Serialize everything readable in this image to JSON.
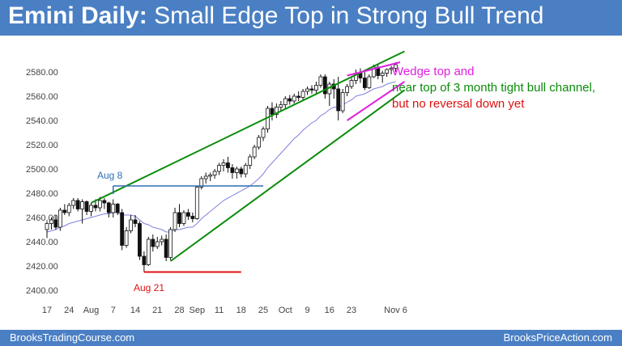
{
  "title_bold": "Emini Daily:",
  "title_rest": "Small Edge Top in Strong Bull Trend",
  "footer_left": "BrooksTradingCourse.com",
  "footer_right": "BrooksPriceAction.com",
  "colors": {
    "header": "#4a7fc4",
    "channel": "#0a8c0a",
    "wedge": "#e020e0",
    "support": "#e01010",
    "aug8_line": "#2f6fb0",
    "ema": "#8080e0",
    "candle": "#111111"
  },
  "annotations": {
    "aug8": "Aug 8",
    "aug21": "Aug 21",
    "note1": "Wedge top and",
    "note2": "near top of 3 month tight bull channel,",
    "note3": "but no reversal down yet"
  },
  "chart_data": {
    "type": "candlestick",
    "title": "Emini Daily: Small Edge Top in Strong Bull Trend",
    "ylim": [
      2395,
      2600
    ],
    "yticks": [
      2400,
      2420,
      2440,
      2460,
      2480,
      2500,
      2520,
      2540,
      2560,
      2580
    ],
    "ytick_labels": [
      "2400.00",
      "2420.00",
      "2440.00",
      "2460.00",
      "2480.00",
      "2500.00",
      "2520.00",
      "2540.00",
      "2560.00",
      "2580.00"
    ],
    "xtick_labels": [
      "17",
      "24",
      "Aug",
      "7",
      "14",
      "21",
      "28",
      "Sep",
      "11",
      "18",
      "25",
      "Oct",
      "9",
      "16",
      "23",
      "Nov 6"
    ],
    "xtick_bar_index": [
      0,
      5,
      10,
      15,
      20,
      25,
      30,
      34,
      39,
      44,
      49,
      54,
      59,
      64,
      69,
      79
    ],
    "ohlc": [
      [
        2450,
        2457,
        2443,
        2455
      ],
      [
        2455,
        2460,
        2450,
        2458
      ],
      [
        2458,
        2462,
        2450,
        2452
      ],
      [
        2452,
        2468,
        2449,
        2466
      ],
      [
        2466,
        2471,
        2462,
        2464
      ],
      [
        2464,
        2472,
        2461,
        2470
      ],
      [
        2470,
        2476,
        2467,
        2474
      ],
      [
        2474,
        2476,
        2465,
        2467
      ],
      [
        2467,
        2475,
        2455,
        2473
      ],
      [
        2473,
        2474,
        2462,
        2465
      ],
      [
        2465,
        2472,
        2461,
        2470
      ],
      [
        2470,
        2475,
        2465,
        2468
      ],
      [
        2468,
        2477,
        2465,
        2474
      ],
      [
        2474,
        2476,
        2467,
        2472
      ],
      [
        2472,
        2473,
        2460,
        2464
      ],
      [
        2464,
        2475,
        2460,
        2471
      ],
      [
        2471,
        2472,
        2462,
        2464
      ],
      [
        2464,
        2467,
        2433,
        2437
      ],
      [
        2437,
        2452,
        2435,
        2449
      ],
      [
        2449,
        2462,
        2447,
        2458
      ],
      [
        2458,
        2462,
        2452,
        2455
      ],
      [
        2455,
        2457,
        2425,
        2428
      ],
      [
        2428,
        2432,
        2415,
        2421
      ],
      [
        2421,
        2444,
        2420,
        2442
      ],
      [
        2442,
        2446,
        2432,
        2436
      ],
      [
        2436,
        2444,
        2434,
        2440
      ],
      [
        2440,
        2445,
        2437,
        2442
      ],
      [
        2442,
        2446,
        2424,
        2427
      ],
      [
        2427,
        2452,
        2425,
        2450
      ],
      [
        2450,
        2468,
        2448,
        2464
      ],
      [
        2464,
        2471,
        2452,
        2455
      ],
      [
        2455,
        2466,
        2453,
        2464
      ],
      [
        2464,
        2467,
        2458,
        2461
      ],
      [
        2461,
        2464,
        2456,
        2459
      ],
      [
        2459,
        2486,
        2458,
        2485
      ],
      [
        2485,
        2494,
        2483,
        2492
      ],
      [
        2492,
        2497,
        2488,
        2494
      ],
      [
        2494,
        2497,
        2490,
        2495
      ],
      [
        2495,
        2500,
        2492,
        2498
      ],
      [
        2498,
        2505,
        2495,
        2503
      ],
      [
        2503,
        2508,
        2498,
        2505
      ],
      [
        2505,
        2510,
        2497,
        2501
      ],
      [
        2501,
        2504,
        2492,
        2497
      ],
      [
        2497,
        2502,
        2492,
        2500
      ],
      [
        2500,
        2502,
        2493,
        2496
      ],
      [
        2496,
        2505,
        2493,
        2503
      ],
      [
        2503,
        2512,
        2500,
        2510
      ],
      [
        2510,
        2520,
        2508,
        2518
      ],
      [
        2518,
        2528,
        2516,
        2526
      ],
      [
        2526,
        2535,
        2523,
        2533
      ],
      [
        2533,
        2552,
        2530,
        2550
      ],
      [
        2550,
        2555,
        2540,
        2545
      ],
      [
        2545,
        2554,
        2542,
        2551
      ],
      [
        2551,
        2556,
        2547,
        2553
      ],
      [
        2553,
        2560,
        2550,
        2558
      ],
      [
        2558,
        2561,
        2553,
        2556
      ],
      [
        2556,
        2562,
        2554,
        2560
      ],
      [
        2560,
        2564,
        2556,
        2559
      ],
      [
        2559,
        2566,
        2557,
        2564
      ],
      [
        2564,
        2568,
        2561,
        2566
      ],
      [
        2566,
        2569,
        2562,
        2565
      ],
      [
        2565,
        2572,
        2561,
        2569
      ],
      [
        2569,
        2578,
        2567,
        2576
      ],
      [
        2576,
        2578,
        2558,
        2562
      ],
      [
        2562,
        2572,
        2552,
        2570
      ],
      [
        2570,
        2574,
        2558,
        2566
      ],
      [
        2566,
        2576,
        2540,
        2548
      ],
      [
        2548,
        2566,
        2546,
        2563
      ],
      [
        2563,
        2570,
        2560,
        2568
      ],
      [
        2568,
        2575,
        2566,
        2573
      ],
      [
        2573,
        2582,
        2570,
        2579
      ],
      [
        2579,
        2583,
        2571,
        2575
      ],
      [
        2575,
        2580,
        2565,
        2567
      ],
      [
        2567,
        2578,
        2566,
        2576
      ],
      [
        2576,
        2586,
        2575,
        2584
      ],
      [
        2584,
        2586,
        2574,
        2577
      ],
      [
        2577,
        2581,
        2571,
        2579
      ],
      [
        2579,
        2583,
        2576,
        2582
      ],
      [
        2582,
        2585,
        2578,
        2583
      ],
      [
        2583,
        2588,
        2580,
        2586
      ]
    ],
    "ema20": [
      2448,
      2449,
      2450,
      2452,
      2453,
      2455,
      2456,
      2457,
      2458,
      2459,
      2460,
      2461,
      2462,
      2463,
      2463,
      2464,
      2464,
      2462,
      2462,
      2462,
      2461,
      2458,
      2455,
      2454,
      2452,
      2451,
      2450,
      2448,
      2448,
      2450,
      2450,
      2451,
      2452,
      2452,
      2455,
      2459,
      2462,
      2465,
      2468,
      2471,
      2474,
      2476,
      2478,
      2480,
      2482,
      2484,
      2486,
      2489,
      2492,
      2496,
      2501,
      2505,
      2509,
      2513,
      2517,
      2521,
      2525,
      2528,
      2532,
      2535,
      2538,
      2540,
      2544,
      2546,
      2549,
      2551,
      2551,
      2553,
      2555,
      2557,
      2560,
      2561,
      2562,
      2564,
      2566,
      2567,
      2568,
      2570,
      2571,
      2572
    ],
    "lines": {
      "channel_top": [
        [
          10,
          2472
        ],
        [
          81,
          2597
        ]
      ],
      "channel_bottom": [
        [
          28,
          2424
        ],
        [
          81,
          2565
        ]
      ],
      "aug8_level": {
        "from": 15,
        "to": 49,
        "price": 2486
      },
      "aug21_level": {
        "from": 22,
        "to": 44,
        "price": 2415
      },
      "wedge_top": [
        [
          68,
          2577
        ],
        [
          80,
          2588
        ]
      ],
      "wedge_bottom": [
        [
          68,
          2540
        ],
        [
          81,
          2572
        ]
      ]
    }
  }
}
